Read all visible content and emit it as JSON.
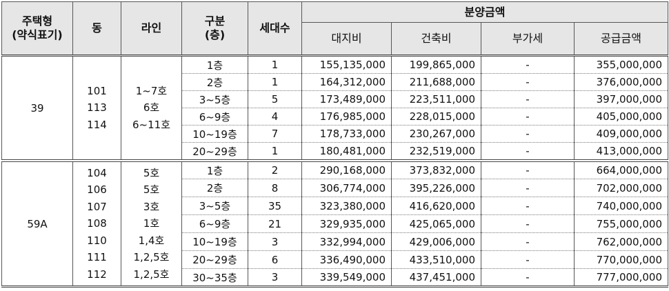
{
  "header": {
    "housing_type": [
      "주택형",
      "(약식표기)"
    ],
    "dong": "동",
    "line": "라인",
    "category": [
      "구분",
      "(층)"
    ],
    "households": "세대수",
    "sale_price": "분양금액",
    "land_cost": "대지비",
    "building_cost": "건축비",
    "vat": "부가세",
    "supply_price": "공급금액"
  },
  "groups": [
    {
      "type": "39",
      "dongs": [
        "101",
        "113",
        "114"
      ],
      "lines": [
        "1~7호",
        "6호",
        "6~11호"
      ],
      "rows": [
        {
          "floor": "1층",
          "households": "1",
          "land": "155,135,000",
          "building": "199,865,000",
          "vat": "-",
          "supply": "355,000,000"
        },
        {
          "floor": "2층",
          "households": "1",
          "land": "164,312,000",
          "building": "211,688,000",
          "vat": "-",
          "supply": "376,000,000"
        },
        {
          "floor": "3~5층",
          "households": "5",
          "land": "173,489,000",
          "building": "223,511,000",
          "vat": "-",
          "supply": "397,000,000"
        },
        {
          "floor": "6~9층",
          "households": "4",
          "land": "176,985,000",
          "building": "228,015,000",
          "vat": "-",
          "supply": "405,000,000"
        },
        {
          "floor": "10~19층",
          "households": "7",
          "land": "178,733,000",
          "building": "230,267,000",
          "vat": "-",
          "supply": "409,000,000"
        },
        {
          "floor": "20~29층",
          "households": "1",
          "land": "180,481,000",
          "building": "232,519,000",
          "vat": "-",
          "supply": "413,000,000"
        }
      ]
    },
    {
      "type": "59A",
      "dongs": [
        "104",
        "106",
        "107",
        "108",
        "110",
        "111",
        "112"
      ],
      "lines": [
        "5호",
        "5호",
        "3호",
        "1호",
        "1,4호",
        "1,2,5호",
        "1,2,5호"
      ],
      "rows": [
        {
          "floor": "1층",
          "households": "2",
          "land": "290,168,000",
          "building": "373,832,000",
          "vat": "-",
          "supply": "664,000,000"
        },
        {
          "floor": "2층",
          "households": "8",
          "land": "306,774,000",
          "building": "395,226,000",
          "vat": "-",
          "supply": "702,000,000"
        },
        {
          "floor": "3~5층",
          "households": "35",
          "land": "323,380,000",
          "building": "416,620,000",
          "vat": "-",
          "supply": "740,000,000"
        },
        {
          "floor": "6~9층",
          "households": "21",
          "land": "329,935,000",
          "building": "425,065,000",
          "vat": "-",
          "supply": "755,000,000"
        },
        {
          "floor": "10~19층",
          "households": "3",
          "land": "332,994,000",
          "building": "429,006,000",
          "vat": "-",
          "supply": "762,000,000"
        },
        {
          "floor": "20~29층",
          "households": "6",
          "land": "336,490,000",
          "building": "433,510,000",
          "vat": "-",
          "supply": "770,000,000"
        },
        {
          "floor": "30~35층",
          "households": "3",
          "land": "339,549,000",
          "building": "437,451,000",
          "vat": "-",
          "supply": "777,000,000"
        }
      ]
    }
  ]
}
